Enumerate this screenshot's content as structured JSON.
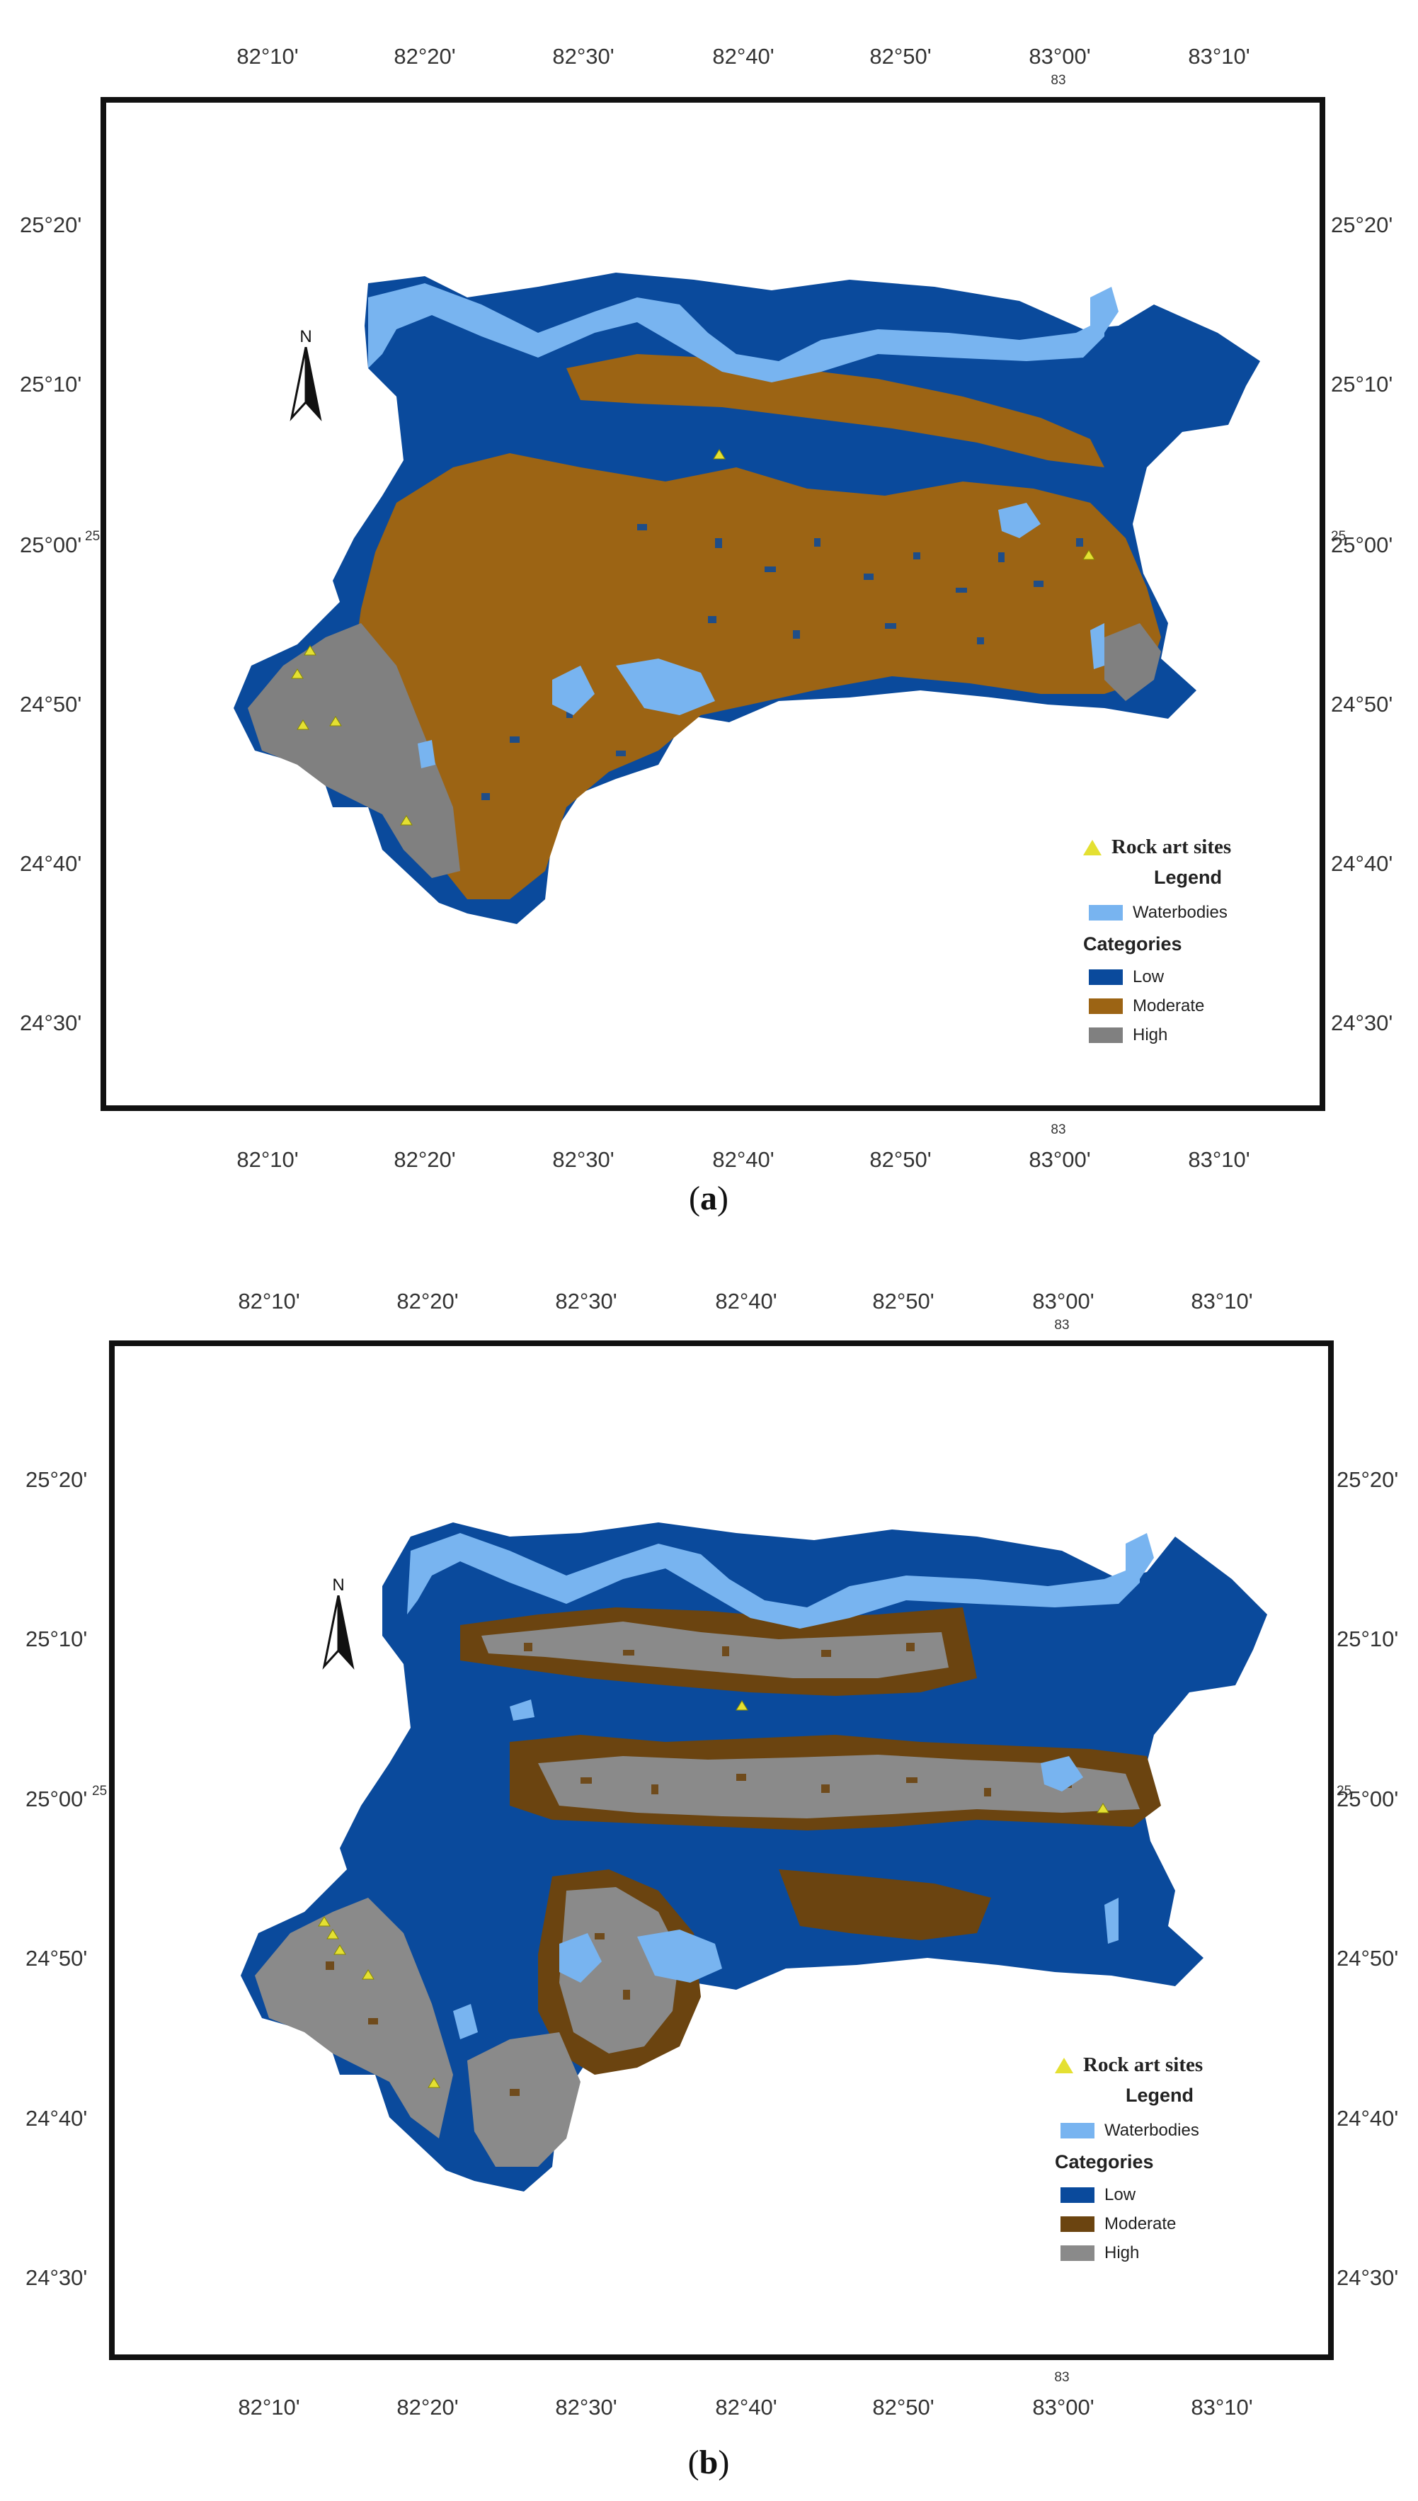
{
  "figure": {
    "panels": [
      {
        "id": "a",
        "caption_open": "(",
        "caption_letter": "a",
        "caption_close": ")",
        "colors": {
          "low": "#0a4a9c",
          "moderate": "#9c6414",
          "high": "#808080",
          "water": "#78b4f0"
        }
      },
      {
        "id": "b",
        "caption_open": "(",
        "caption_letter": "b",
        "caption_close": ")",
        "colors": {
          "low": "#0a4a9c",
          "moderate": "#6b4410",
          "high": "#8a8a8a",
          "water": "#78b4f0"
        }
      }
    ],
    "x_ticks": [
      "82°10'",
      "82°20'",
      "82°30'",
      "82°40'",
      "82°50'",
      "83°00'",
      "83°10'"
    ],
    "y_ticks": [
      "25°20'",
      "25°10'",
      "25°00'",
      "24°50'",
      "24°40'",
      "24°30'"
    ],
    "small_label_x": "83",
    "small_label_y": "25",
    "north_label": "N",
    "legend": {
      "rock_art_sites": "Rock art sites",
      "title": "Legend",
      "waterbodies": "Waterbodies",
      "categories_title": "Categories",
      "low": "Low",
      "moderate": "Moderate",
      "high": "High",
      "rock_color": "#e4e032",
      "water_color": "#78b4f0"
    }
  }
}
